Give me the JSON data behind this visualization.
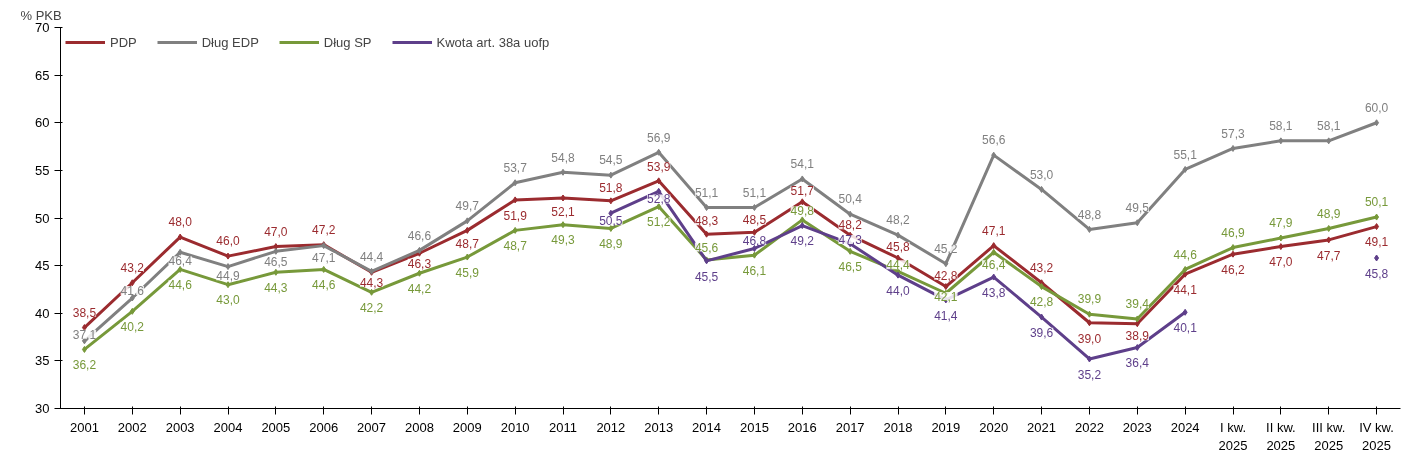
{
  "chart_data": {
    "type": "line",
    "ylabel": "% PKB",
    "categories": [
      "2001",
      "2002",
      "2003",
      "2004",
      "2005",
      "2006",
      "2007",
      "2008",
      "2009",
      "2010",
      "2011",
      "2012",
      "2013",
      "2014",
      "2015",
      "2016",
      "2017",
      "2018",
      "2019",
      "2020",
      "2021",
      "2022",
      "2023",
      "2024",
      "I kw.\n2025",
      "II kw.\n2025",
      "III kw.\n2025",
      "IV kw.\n2025"
    ],
    "series": [
      {
        "name": "PDP",
        "color": "#9b2b2f",
        "values": [
          38.5,
          43.2,
          48.0,
          46.0,
          47.0,
          47.2,
          44.3,
          46.3,
          48.7,
          51.9,
          52.1,
          51.8,
          53.9,
          48.3,
          48.5,
          51.7,
          48.2,
          45.8,
          42.8,
          47.1,
          43.2,
          39.0,
          38.9,
          44.1,
          46.2,
          47.0,
          47.7,
          49.1
        ],
        "value_labels": [
          "38,5",
          "43,2",
          "48,0",
          "46,0",
          "47,0",
          "47,2",
          "44,3",
          "46,3",
          "48,7",
          "51,9",
          "52,1",
          "51,8",
          "53,9",
          "48,3",
          "48,5",
          "51,7",
          "48,2",
          "45,8",
          "42,8",
          "47,1",
          "43,2",
          "39,0",
          "38,9",
          "44,1",
          "46,2",
          "47,0",
          "47,7",
          "49,1"
        ]
      },
      {
        "name": "Dług EDP",
        "color": "#808080",
        "values": [
          37.1,
          41.6,
          46.4,
          44.9,
          46.5,
          47.1,
          44.4,
          46.6,
          49.7,
          53.7,
          54.8,
          54.5,
          56.9,
          51.1,
          51.1,
          54.1,
          50.4,
          48.2,
          45.2,
          56.6,
          53.0,
          48.8,
          49.5,
          55.1,
          57.3,
          58.1,
          58.1,
          60.0
        ],
        "value_labels": [
          "37,1",
          "41,6",
          "46,4",
          "44,9",
          "46,5",
          "47,1",
          "44,4",
          "46,6",
          "49,7",
          "53,7",
          "54,8",
          "54,5",
          "56,9",
          "51,1",
          "51,1",
          "54,1",
          "50,4",
          "48,2",
          "45,2",
          "56,6",
          "53,0",
          "48,8",
          "49,5",
          "55,1",
          "57,3",
          "58,1",
          "58,1",
          "60,0"
        ]
      },
      {
        "name": "Dług SP",
        "color": "#77993a",
        "values": [
          36.2,
          40.2,
          44.6,
          43.0,
          44.3,
          44.6,
          42.2,
          44.2,
          45.9,
          48.7,
          49.3,
          48.9,
          51.2,
          45.6,
          46.1,
          49.8,
          46.5,
          44.4,
          42.1,
          46.4,
          42.8,
          39.9,
          39.4,
          44.6,
          46.9,
          47.9,
          48.9,
          50.1
        ],
        "value_labels": [
          "36,2",
          "40,2",
          "44,6",
          "43,0",
          "44,3",
          "44,6",
          "42,2",
          "44,2",
          "45,9",
          "48,7",
          "49,3",
          "48,9",
          "51,2",
          "45,6",
          "46,1",
          "49,8",
          "46,5",
          "44,4",
          "42,1",
          "46,4",
          "42,8",
          "39,9",
          "39,4",
          "44,6",
          "46,9",
          "47,9",
          "48,9",
          "50,1"
        ]
      },
      {
        "name": "Kwota art. 38a uofp",
        "color": "#5e3f8a",
        "values": [
          null,
          null,
          null,
          null,
          null,
          null,
          null,
          null,
          null,
          null,
          null,
          50.5,
          52.8,
          45.5,
          46.8,
          49.2,
          47.3,
          44.0,
          41.4,
          43.8,
          39.6,
          35.2,
          36.4,
          40.1,
          null,
          null,
          null,
          45.8
        ],
        "value_labels": [
          null,
          null,
          null,
          null,
          null,
          null,
          null,
          null,
          null,
          null,
          null,
          "50,5",
          "52,8",
          "45,5",
          "46,8",
          "49,2",
          "47,3",
          "44,0",
          "41,4",
          "43,8",
          "39,6",
          "35,2",
          "36,4",
          "40,1",
          null,
          null,
          null,
          "45,8"
        ]
      }
    ],
    "ylim": [
      30,
      70
    ],
    "yticks": [
      30,
      35,
      40,
      45,
      50,
      55,
      60,
      65,
      70
    ],
    "grid": false,
    "legend": "top left",
    "marker": "diamond",
    "line_style": "solid"
  }
}
